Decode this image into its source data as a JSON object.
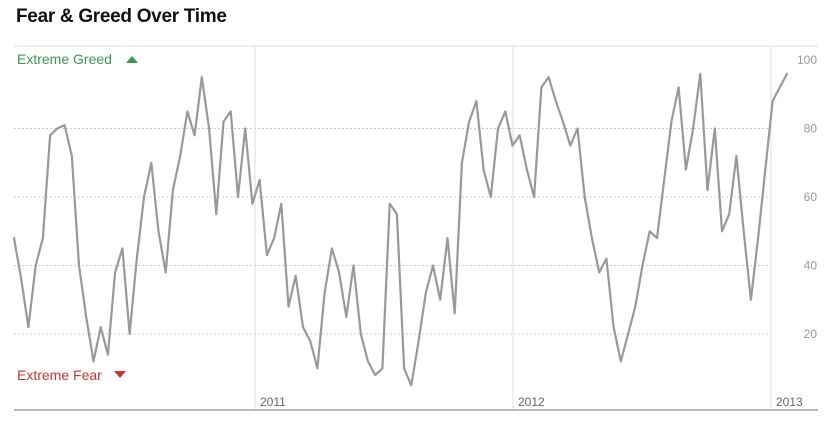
{
  "header": {
    "title": "Fear & Greed Over Time"
  },
  "chart_data": {
    "type": "line",
    "title": "Fear & Greed Over Time",
    "xlabel": "",
    "ylabel": "",
    "ylim": [
      0,
      100
    ],
    "yticks": [
      "20",
      "40",
      "60",
      "80",
      "100"
    ],
    "xticks": [
      "2011",
      "2012",
      "2013"
    ],
    "annotations": {
      "top": "Extreme Greed",
      "bottom": "Extreme Fear"
    },
    "grid": "horizontal dotted, vertical solid at year boundaries",
    "colors": {
      "line": "#999999",
      "greed": "#3a9a4e",
      "fear": "#c8342f",
      "grid": "#cccccc",
      "axis": "#bbbbbb"
    },
    "series": [
      {
        "x": [
          0.0,
          0.02,
          0.04,
          0.06,
          0.08,
          0.1,
          0.12,
          0.14,
          0.16,
          0.18,
          0.2,
          0.22,
          0.24,
          0.26,
          0.28,
          0.3,
          0.32,
          0.34,
          0.36,
          0.38,
          0.4,
          0.42,
          0.44,
          0.46,
          0.48,
          0.5,
          0.52,
          0.54,
          0.56,
          0.58,
          0.6,
          0.62,
          0.64,
          0.66,
          0.68,
          0.7,
          0.72,
          0.74,
          0.76,
          0.78,
          0.8,
          0.82,
          0.84,
          0.86,
          0.88,
          0.9,
          0.92,
          0.94,
          0.96,
          0.98,
          1.0,
          1.02,
          1.04,
          1.06,
          1.08,
          1.1,
          1.12,
          1.14,
          1.16,
          1.18,
          1.2,
          1.22,
          1.24,
          1.26,
          1.28,
          1.3,
          1.32,
          1.34,
          1.36,
          1.38,
          1.4,
          1.42,
          1.44,
          1.46,
          1.48,
          1.5,
          1.52,
          1.54,
          1.56,
          1.58,
          1.6,
          1.62,
          1.64,
          1.66,
          1.68,
          1.7,
          1.72,
          1.74,
          1.76,
          1.78,
          1.8,
          1.82,
          1.84,
          1.86,
          1.88,
          1.9,
          1.92,
          1.94,
          1.96,
          1.98,
          2.0,
          2.02,
          2.04,
          2.06,
          2.08,
          2.1,
          2.12,
          2.14
        ],
        "values": [
          48,
          36,
          22,
          40,
          48,
          78,
          80,
          81,
          72,
          40,
          25,
          12,
          22,
          14,
          38,
          45,
          20,
          42,
          60,
          70,
          50,
          38,
          62,
          72,
          85,
          78,
          95,
          80,
          55,
          82,
          85,
          60,
          80,
          58,
          65,
          43,
          48,
          58,
          28,
          37,
          22,
          18,
          10,
          32,
          45,
          38,
          25,
          40,
          20,
          12,
          8,
          10,
          58,
          55,
          10,
          5,
          18,
          32,
          40,
          30,
          48,
          26,
          70,
          82,
          88,
          68,
          60,
          80,
          85,
          75,
          78,
          68,
          60,
          92,
          95,
          88,
          82,
          75,
          80,
          60,
          48,
          38,
          42,
          22,
          12,
          20,
          28,
          40,
          50,
          48,
          65,
          82,
          92,
          68,
          80,
          96,
          62,
          80,
          50,
          55,
          72,
          50,
          30,
          48,
          68,
          88,
          92,
          96
        ]
      }
    ]
  }
}
